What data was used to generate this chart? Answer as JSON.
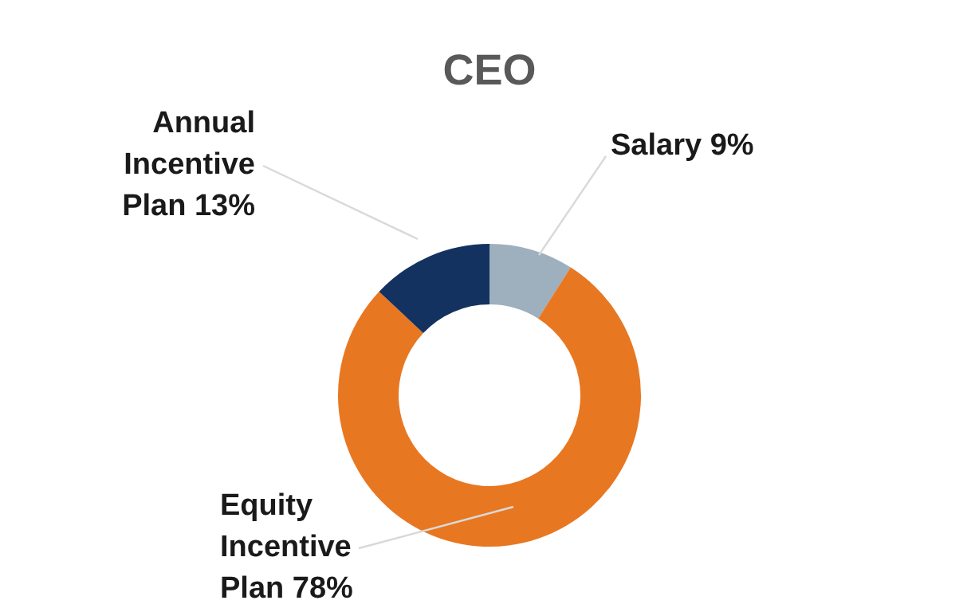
{
  "chart_data": {
    "type": "donut",
    "title": "CEO",
    "categories": [
      "Salary",
      "Equity Incentive Plan",
      "Annual Incentive Plan"
    ],
    "values": [
      9,
      78,
      13
    ],
    "colors": [
      "#9eafbd",
      "#e87722",
      "#13325f"
    ],
    "value_labels": [
      "9%",
      "78%",
      "13%"
    ]
  }
}
